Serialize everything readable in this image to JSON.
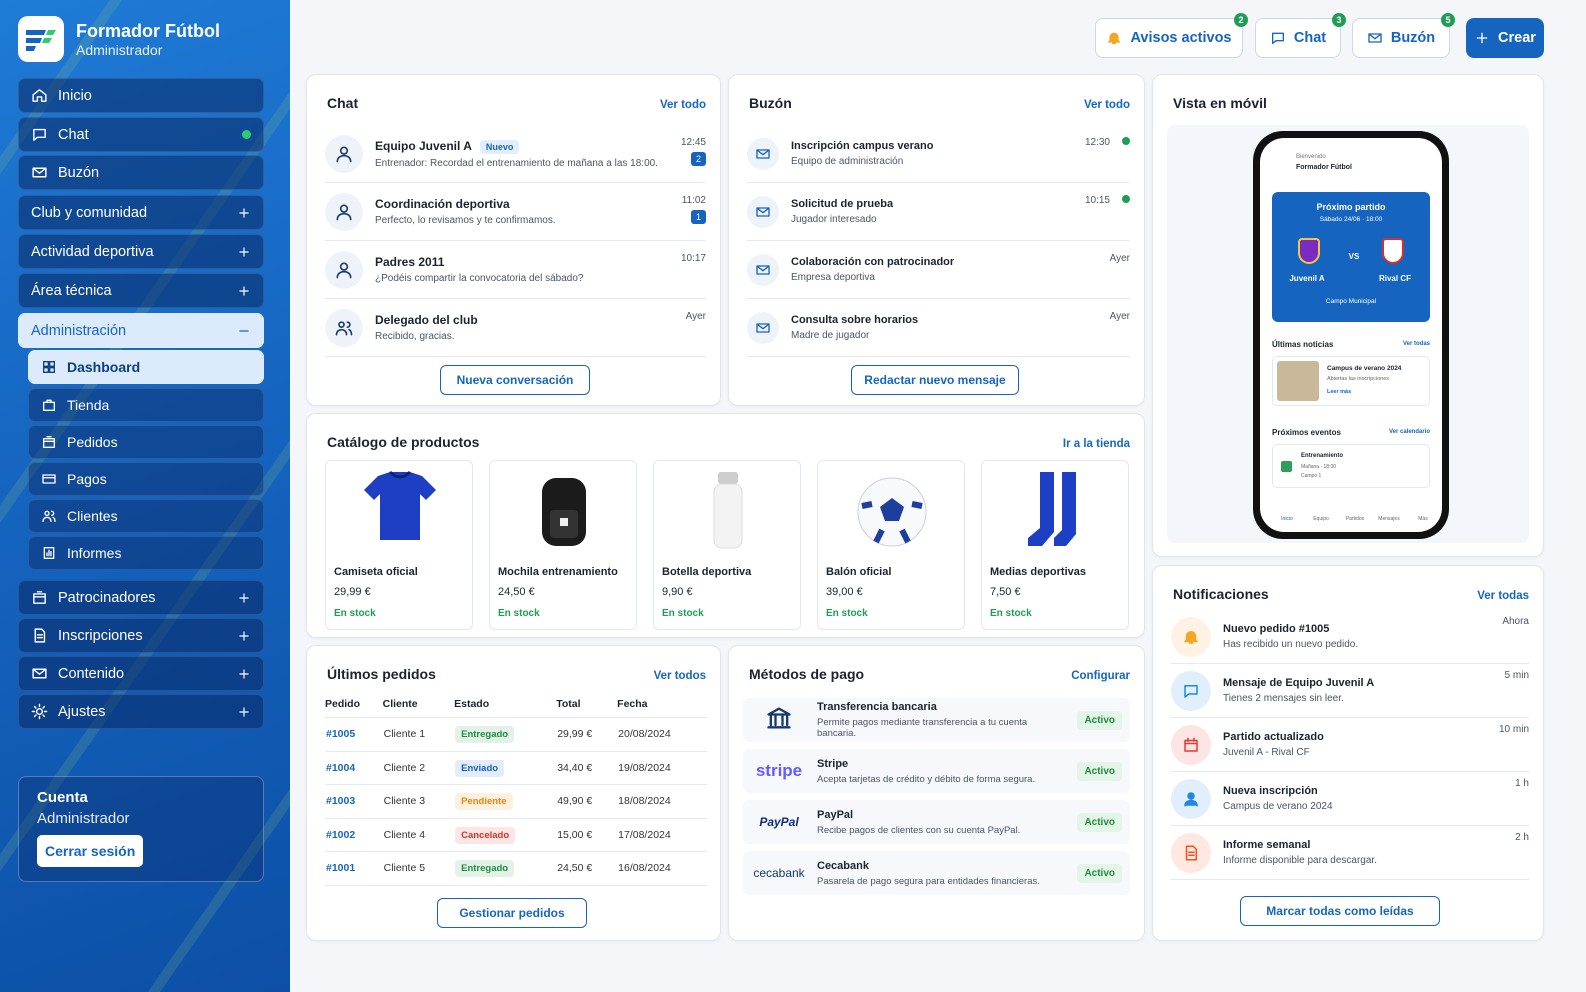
{
  "brand": {
    "name": "Formador Fútbol",
    "role": "Administrador"
  },
  "nav": [
    {
      "label": "Inicio",
      "icon": "home"
    },
    {
      "label": "Chat",
      "icon": "chat",
      "online": true
    },
    {
      "label": "Buzón",
      "icon": "mail"
    },
    {
      "label": "Club y comunidad",
      "expandable": true
    },
    {
      "label": "Actividad deportiva",
      "expandable": true
    },
    {
      "label": "Área técnica",
      "expandable": true
    },
    {
      "label": "Administración",
      "expanded": true,
      "children": [
        {
          "label": "Dashboard",
          "icon": "grid",
          "active": true
        },
        {
          "label": "Tienda",
          "icon": "bag"
        },
        {
          "label": "Pedidos",
          "icon": "box"
        },
        {
          "label": "Pagos",
          "icon": "card"
        },
        {
          "label": "Clientes",
          "icon": "users"
        },
        {
          "label": "Informes",
          "icon": "chart"
        }
      ]
    },
    {
      "label": "Patrocinadores",
      "icon": "box",
      "expandable": true
    },
    {
      "label": "Inscripciones",
      "icon": "doc",
      "expandable": true
    },
    {
      "label": "Contenido",
      "icon": "mail",
      "expandable": true
    },
    {
      "label": "Ajustes",
      "icon": "gear",
      "expandable": true
    }
  ],
  "account": {
    "title": "Cuenta",
    "role": "Administrador",
    "logout": "Cerrar sesión"
  },
  "topbar": [
    {
      "label": "Avisos activos",
      "badge": "2",
      "icon": "bell"
    },
    {
      "label": "Chat",
      "badge": "3",
      "icon": "chat"
    },
    {
      "label": "Buzón",
      "badge": "5",
      "icon": "mail"
    },
    {
      "label": "Crear",
      "icon": "plus",
      "primary": true
    }
  ],
  "chat": {
    "title": "Chat",
    "link": "Ver todo",
    "button": "Nueva conversación",
    "items": [
      {
        "name": "Equipo Juvenil A",
        "tag": "Nuevo",
        "text": "Entrenador: Recordad el entrenamiento de mañana a las 18:00.",
        "time": "12:45",
        "unread": "2"
      },
      {
        "name": "Coordinación deportiva",
        "text": "Perfecto, lo revisamos y te confirmamos.",
        "time": "11:02",
        "unread": "1"
      },
      {
        "name": "Padres 2011",
        "text": "¿Podéis compartir la convocatoria del sábado?",
        "time": "10:17"
      },
      {
        "name": "Delegado del club",
        "text": "Recibido, gracias.",
        "time": "Ayer"
      }
    ]
  },
  "inbox": {
    "title": "Buzón",
    "link": "Ver todo",
    "button": "Redactar nuevo mensaje",
    "items": [
      {
        "subject": "Inscripción campus verano",
        "from": "Equipo de administración",
        "time": "12:30",
        "new": true
      },
      {
        "subject": "Solicitud de prueba",
        "from": "Jugador interesado",
        "time": "10:15",
        "new": true
      },
      {
        "subject": "Colaboración con patrocinador",
        "from": "Empresa deportiva",
        "time": "Ayer"
      },
      {
        "subject": "Consulta sobre horarios",
        "from": "Madre de jugador",
        "time": "Ayer"
      }
    ]
  },
  "catalog": {
    "title": "Catálogo de productos",
    "link": "Ir a la tienda",
    "products": [
      {
        "name": "Camiseta oficial",
        "price": "29,99 €",
        "stock": "En stock"
      },
      {
        "name": "Mochila entrenamiento",
        "price": "24,50 €",
        "stock": "En stock"
      },
      {
        "name": "Botella deportiva",
        "price": "9,90 €",
        "stock": "En stock"
      },
      {
        "name": "Balón oficial",
        "price": "39,00 €",
        "stock": "En stock"
      },
      {
        "name": "Medias deportivas",
        "price": "7,50 €",
        "stock": "En stock"
      }
    ]
  },
  "orders": {
    "title": "Últimos pedidos",
    "link": "Ver todos",
    "button": "Gestionar pedidos",
    "columns": [
      "Pedido",
      "Cliente",
      "Estado",
      "Total",
      "Fecha"
    ],
    "rows": [
      {
        "id": "#1005",
        "client": "Cliente 1",
        "status": "Entregado",
        "status_color": "#1e8e3e",
        "total": "29,99 €",
        "date": "20/08/2024"
      },
      {
        "id": "#1004",
        "client": "Cliente 2",
        "status": "Enviado",
        "status_color": "#1565c0",
        "total": "34,40 €",
        "date": "19/08/2024"
      },
      {
        "id": "#1003",
        "client": "Cliente 3",
        "status": "Pendiente",
        "status_color": "#e8860c",
        "total": "49,90 €",
        "date": "18/08/2024"
      },
      {
        "id": "#1002",
        "client": "Cliente 4",
        "status": "Cancelado",
        "status_color": "#d93025",
        "total": "15,00 €",
        "date": "17/08/2024"
      },
      {
        "id": "#1001",
        "client": "Cliente 5",
        "status": "Entregado",
        "status_color": "#1e8e3e",
        "total": "24,50 €",
        "date": "16/08/2024"
      }
    ]
  },
  "payments": {
    "title": "Métodos de pago",
    "link": "Configurar",
    "methods": [
      {
        "name": "Transferencia bancaria",
        "desc": "Permite pagos mediante transferencia a tu cuenta bancaria.",
        "status": "Activo"
      },
      {
        "logo": "stripe",
        "name": "Stripe",
        "desc": "Acepta tarjetas de crédito y débito de forma segura.",
        "status": "Activo"
      },
      {
        "logo": "PayPal",
        "name": "PayPal",
        "desc": "Recibe pagos de clientes con su cuenta PayPal.",
        "status": "Activo"
      },
      {
        "logo": "cecabank",
        "name": "Cecabank",
        "desc": "Pasarela de pago segura para entidades financieras.",
        "status": "Activo"
      }
    ]
  },
  "mobile": {
    "title": "Vista en móvil",
    "greeting": "Bienvenido",
    "app": "Formador Fútbol",
    "match": {
      "title": "Próximo partido",
      "date": "Sábado 24/06 · 18:00",
      "home": "Juvenil A",
      "vs": "VS",
      "away": "Rival CF",
      "place": "Campo Municipal"
    },
    "news": {
      "title": "Últimas noticias",
      "link": "Ver todas",
      "item": "Campus de verano 2024",
      "text": "Abiertas las inscripciones",
      "more": "Leer más"
    },
    "events": {
      "title": "Próximos eventos",
      "link": "Ver calendario",
      "item": "Entrenamiento",
      "date": "Mañana · 18:00",
      "place": "Campo 1"
    },
    "tabs": [
      "Inicio",
      "Equipo",
      "Partidos",
      "Mensajes",
      "Más"
    ]
  },
  "notifications": {
    "title": "Notificaciones",
    "link": "Ver todas",
    "button": "Marcar todas como leídas",
    "items": [
      {
        "title": "Nuevo pedido #1005",
        "text": "Has recibido un nuevo pedido.",
        "time": "Ahora",
        "color": "#f5a623",
        "icon": "bell"
      },
      {
        "title": "Mensaje de Equipo Juvenil A",
        "text": "Tienes 2 mensajes sin leer.",
        "time": "5 min",
        "color": "#1e88e5",
        "icon": "chat"
      },
      {
        "title": "Partido actualizado",
        "text": "Juvenil A - Rival CF",
        "time": "10 min",
        "color": "#e53935",
        "icon": "calendar"
      },
      {
        "title": "Nueva inscripción",
        "text": "Campus de verano 2024",
        "time": "1 h",
        "color": "#1e88e5",
        "icon": "person"
      },
      {
        "title": "Informe semanal",
        "text": "Informe disponible para descargar.",
        "time": "2 h",
        "color": "#f4511e",
        "icon": "doc"
      }
    ]
  }
}
